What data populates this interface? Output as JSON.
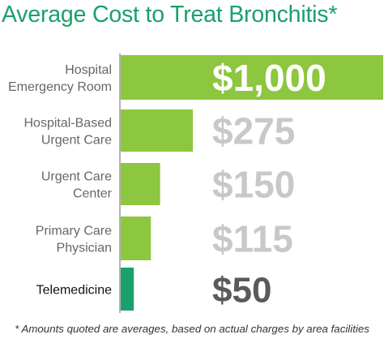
{
  "title": "Average Cost to Treat Bronchitis*",
  "footnote": "* Amounts quoted are averages, based on actual charges by area facilities",
  "colors": {
    "title": "#1aa06a",
    "bar_primary": "#8dc63f",
    "bar_telemedicine": "#1aa06a",
    "value_highlight": "#ffffff",
    "value_muted": "#c8c8c8",
    "value_telemedicine": "#5a5a5a",
    "axis": "#999999"
  },
  "chart_data": {
    "type": "bar",
    "orientation": "horizontal",
    "title": "Average Cost to Treat Bronchitis*",
    "categories": [
      [
        "Hospital",
        "Emergency Room"
      ],
      [
        "Hospital-Based",
        "Urgent Care"
      ],
      [
        "Urgent Care",
        "Center"
      ],
      [
        "Primary Care",
        "Physician"
      ],
      [
        "Telemedicine"
      ]
    ],
    "values": [
      1000,
      275,
      150,
      115,
      50
    ],
    "value_labels": [
      "$1,000",
      "$275",
      "$150",
      "$115",
      "$50"
    ],
    "xlim": [
      0,
      1000
    ],
    "grid": false,
    "legend": "none"
  }
}
